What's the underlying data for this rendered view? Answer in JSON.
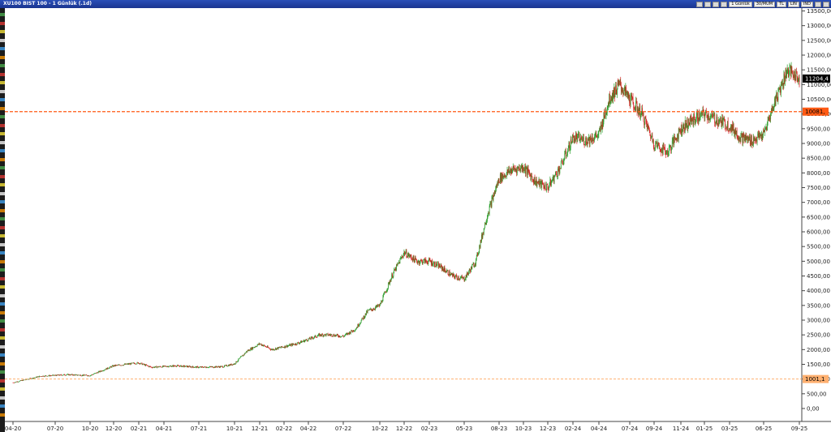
{
  "window": {
    "title": "XU100 BIST 100 - 1 Günlük (.1d)",
    "toolbar_fields": [
      "1 Günlük",
      "30/MUM",
      "TL",
      "LIN",
      "IND"
    ]
  },
  "chart_data": {
    "type": "candlestick",
    "title": "XU100 BIST 100 - 1 Günlük (.1d)",
    "xlabel": "",
    "ylabel": "",
    "ylim": [
      0,
      13750
    ],
    "y_ticks": [
      "0,00",
      "500,00",
      "1000,00",
      "1500,00",
      "2000,00",
      "2500,00",
      "3000,00",
      "3500,00",
      "4000,00",
      "4500,00",
      "5000,00",
      "5500,00",
      "6000,00",
      "6500,00",
      "7000,00",
      "7500,00",
      "8000,00",
      "8500,00",
      "9000,00",
      "9500,00",
      "10000,00",
      "10500,00",
      "11000,00",
      "11500,00",
      "12000,00",
      "12500,00",
      "13000,00",
      "13500,00"
    ],
    "x_ticks": [
      "04-20",
      "07-20",
      "10-20",
      "12-20",
      "02-21",
      "04-21",
      "07-21",
      "10-21",
      "12-21",
      "02-22",
      "04-22",
      "07-22",
      "10-22",
      "12-22",
      "02-23",
      "05-23",
      "08-23",
      "10-23",
      "12-23",
      "02-24",
      "04-24",
      "07-24",
      "09-24",
      "11-24",
      "01-25",
      "03-25",
      "06-25",
      "09-25"
    ],
    "x_tick_dates": [
      "2020-04",
      "2020-07",
      "2020-10",
      "2020-12",
      "2021-02",
      "2021-04",
      "2021-07",
      "2021-10",
      "2021-12",
      "2022-02",
      "2022-04",
      "2022-07",
      "2022-10",
      "2022-12",
      "2023-02",
      "2023-05",
      "2023-08",
      "2023-10",
      "2023-12",
      "2024-02",
      "2024-04",
      "2024-07",
      "2024-09",
      "2024-11",
      "2025-01",
      "2025-03",
      "2025-06",
      "2025-09"
    ],
    "series": [
      {
        "x": [
          "2020-04",
          "2020-06",
          "2020-08",
          "2020-10",
          "2020-12",
          "2021-02",
          "2021-03",
          "2021-05",
          "2021-07",
          "2021-09",
          "2021-10",
          "2021-11",
          "2021-12",
          "2022-01",
          "2022-03",
          "2022-05",
          "2022-06",
          "2022-07",
          "2022-08",
          "2022-09",
          "2022-10",
          "2022-11",
          "2022-12",
          "2023-01",
          "2023-02",
          "2023-03",
          "2023-04",
          "2023-05",
          "2023-06",
          "2023-07",
          "2023-08",
          "2023-09",
          "2023-10",
          "2023-11",
          "2023-12",
          "2024-01",
          "2024-02",
          "2024-03",
          "2024-04",
          "2024-05",
          "2024-06",
          "2024-07",
          "2024-08",
          "2024-09",
          "2024-10",
          "2024-11",
          "2024-12",
          "2025-01",
          "2025-02",
          "2025-03",
          "2025-04",
          "2025-05",
          "2025-06",
          "2025-07",
          "2025-08",
          "2025-09"
        ],
        "values": [
          880,
          1100,
          1150,
          1120,
          1450,
          1550,
          1400,
          1450,
          1400,
          1420,
          1520,
          1950,
          2200,
          2000,
          2200,
          2500,
          2500,
          2450,
          2700,
          3300,
          3500,
          4500,
          5300,
          5000,
          5000,
          4800,
          4500,
          4400,
          5000,
          6600,
          7800,
          8100,
          8200,
          7700,
          7500,
          8200,
          9200,
          9100,
          9300,
          10500,
          11000,
          10500,
          10000,
          9000,
          8700,
          9500,
          9800,
          10000,
          9800,
          9600,
          9200,
          9100,
          9300,
          10500,
          11500,
          11204.4
        ]
      }
    ],
    "horizontal_lines": [
      {
        "value": 10081,
        "label": "10081,"
      },
      {
        "value": 1001.1,
        "label": "1001,1"
      }
    ],
    "last_price": {
      "value": 11204.4,
      "label": "11204,4"
    },
    "colors": {
      "up": "#2e9e2e",
      "down": "#d42020",
      "line_high": "#ff5a14",
      "line_low": "#ffb070",
      "last_bg": "#000000"
    },
    "grid": false,
    "legend": "none"
  }
}
